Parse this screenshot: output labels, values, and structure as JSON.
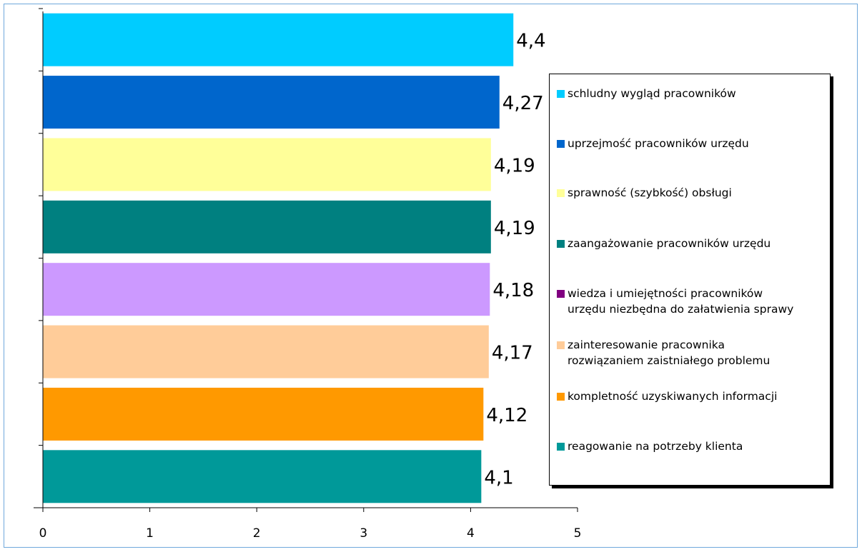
{
  "chart_data": {
    "type": "bar",
    "orientation": "horizontal",
    "categories": [
      "schludny wygląd pracowników",
      "uprzejmość pracowników urzędu",
      "sprawność (szybkość) obsługi",
      "zaangażowanie pracowników urzędu",
      "wiedza i umiejętności pracowników\nurzędu niezbędna do załatwienia sprawy",
      "zainteresowanie pracownika\nrozwiązaniem zaistniałego problemu",
      "kompletność uzyskiwanych informacji",
      "reagowanie na potrzeby klienta"
    ],
    "values": [
      4.4,
      4.27,
      4.19,
      4.19,
      4.18,
      4.17,
      4.12,
      4.1
    ],
    "data_labels": [
      "4,4",
      "4,27",
      "4,19",
      "4,19",
      "4,18",
      "4,17",
      "4,12",
      "4,1"
    ],
    "bar_colors": [
      "#00ccff",
      "#0066cc",
      "#ffff99",
      "#008080",
      "#cc99ff",
      "#ffcc99",
      "#ff9900",
      "#009999"
    ],
    "legend_colors": [
      "#00ccff",
      "#0066cc",
      "#ffff99",
      "#008080",
      "#800080",
      "#ffcc99",
      "#ff9900",
      "#009999"
    ],
    "xlim": [
      0,
      5
    ],
    "x_ticks": [
      "0",
      "1",
      "2",
      "3",
      "4",
      "5"
    ],
    "title": "",
    "xlabel": "",
    "ylabel": "",
    "legend_position": "right",
    "grid": false
  }
}
